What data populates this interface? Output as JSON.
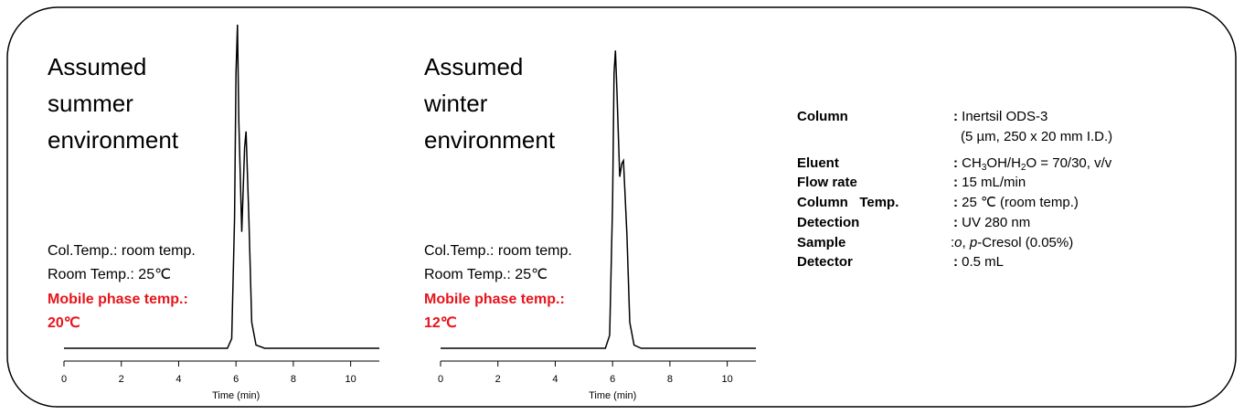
{
  "chart_data": [
    {
      "type": "line",
      "title_lines": [
        "Assumed",
        "summer",
        "environment"
      ],
      "notes": [
        "Col.Temp.: room temp.",
        "Room Temp.: 25℃"
      ],
      "highlight_notes": [
        "Mobile phase temp.:",
        "20℃"
      ],
      "x_label": "Time (min)",
      "xlim": [
        0,
        11
      ],
      "xticks": [
        0,
        2,
        4,
        6,
        8,
        10
      ],
      "ylim": [
        0,
        100
      ],
      "color": "#000000",
      "x": [
        0,
        5.7,
        5.85,
        5.95,
        6.0,
        6.05,
        6.1,
        6.2,
        6.3,
        6.35,
        6.45,
        6.55,
        6.7,
        7,
        11
      ],
      "values": [
        0,
        0,
        3,
        40,
        85,
        100,
        70,
        36,
        62,
        67,
        40,
        8,
        1,
        0,
        0
      ]
    },
    {
      "type": "line",
      "title_lines": [
        "Assumed",
        "winter",
        "environment"
      ],
      "notes": [
        "Col.Temp.: room temp.",
        "Room Temp.: 25℃"
      ],
      "highlight_notes": [
        "Mobile phase temp.:",
        "12℃"
      ],
      "x_label": "Time (min)",
      "xlim": [
        0,
        11
      ],
      "xticks": [
        0,
        2,
        4,
        6,
        8,
        10
      ],
      "ylim": [
        0,
        100
      ],
      "color": "#000000",
      "x": [
        0,
        5.75,
        5.9,
        6.0,
        6.05,
        6.1,
        6.15,
        6.25,
        6.32,
        6.38,
        6.5,
        6.6,
        6.75,
        7,
        11
      ],
      "values": [
        0,
        0,
        4,
        45,
        85,
        92,
        80,
        53,
        57,
        58,
        35,
        8,
        1,
        0,
        0
      ]
    }
  ],
  "conditions": {
    "rows": [
      {
        "label": "Column",
        "value": [
          ":",
          " Inertsil ODS-3"
        ],
        "value_line2": "(5 µm, 250 x 20 mm I.D.)"
      },
      {
        "label": "Eluent",
        "value": [
          ":",
          " CH",
          "3",
          "OH/H",
          "2",
          "O = 70/30, v/v"
        ]
      },
      {
        "label": "Flow rate",
        "value": [
          ":",
          " 15 mL/min"
        ]
      },
      {
        "label": "Column   Temp.",
        "value": [
          ":",
          " 25 ℃ (room temp.)"
        ]
      },
      {
        "label": "Detection",
        "value": [
          ":",
          " UV 280 nm"
        ]
      },
      {
        "label": "Sample",
        "value": [
          " :",
          "o",
          ", ",
          "p",
          "-Cresol (0.05%)"
        ]
      },
      {
        "label": "Detector",
        "value": [
          ":",
          " 0.5 mL"
        ]
      }
    ]
  }
}
